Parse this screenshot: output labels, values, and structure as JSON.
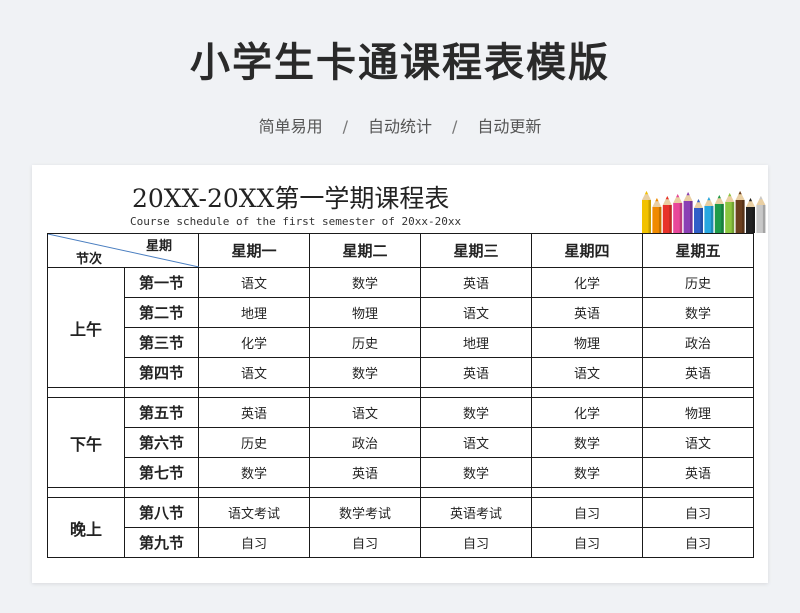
{
  "header": {
    "title": "小学生卡通课程表模版",
    "features": [
      "简单易用",
      "自动统计",
      "自动更新"
    ],
    "separator": "/"
  },
  "document": {
    "title": "20XX-20XX第一学期课程表",
    "subtitle": "Course schedule of the first semester of 20xx-20xx"
  },
  "schedule": {
    "corner_top": "星期",
    "corner_bottom": "节次",
    "days": [
      "星期一",
      "星期二",
      "星期三",
      "星期四",
      "星期五"
    ],
    "sessions": [
      {
        "name": "上午",
        "periods": [
          {
            "label": "第一节",
            "subjects": [
              "语文",
              "数学",
              "英语",
              "化学",
              "历史"
            ]
          },
          {
            "label": "第二节",
            "subjects": [
              "地理",
              "物理",
              "语文",
              "英语",
              "数学"
            ]
          },
          {
            "label": "第三节",
            "subjects": [
              "化学",
              "历史",
              "地理",
              "物理",
              "政治"
            ]
          },
          {
            "label": "第四节",
            "subjects": [
              "语文",
              "数学",
              "英语",
              "语文",
              "英语"
            ]
          }
        ]
      },
      {
        "name": "下午",
        "periods": [
          {
            "label": "第五节",
            "subjects": [
              "英语",
              "语文",
              "数学",
              "化学",
              "物理"
            ]
          },
          {
            "label": "第六节",
            "subjects": [
              "历史",
              "政治",
              "语文",
              "数学",
              "语文"
            ]
          },
          {
            "label": "第七节",
            "subjects": [
              "数学",
              "英语",
              "数学",
              "数学",
              "英语"
            ]
          }
        ]
      },
      {
        "name": "晚上",
        "periods": [
          {
            "label": "第八节",
            "subjects": [
              "语文考试",
              "数学考试",
              "英语考试",
              "自习",
              "自习"
            ]
          },
          {
            "label": "第九节",
            "subjects": [
              "自习",
              "自习",
              "自习",
              "自习",
              "自习"
            ]
          }
        ]
      }
    ]
  },
  "colors": {
    "background": "#f0f2f5",
    "sheet": "#ffffff",
    "text": "#222222",
    "diagonal_line": "#4a7ec0",
    "pencils": [
      "#f2c200",
      "#f08a00",
      "#e8322a",
      "#e8479a",
      "#8a3fb5",
      "#2f5fc8",
      "#28a7e0",
      "#1f9a4a",
      "#8cc63f",
      "#6b3f1e",
      "#222222",
      "#c8c8c8"
    ]
  }
}
